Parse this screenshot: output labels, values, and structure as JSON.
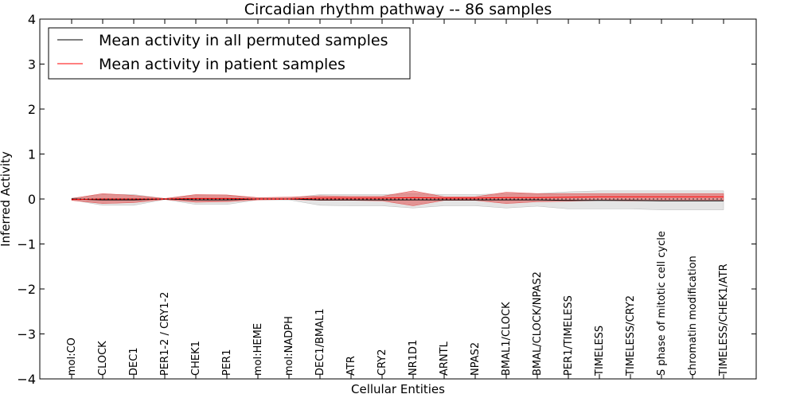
{
  "chart_data": {
    "type": "line",
    "title": "Circadian rhythm pathway -- 86 samples",
    "xlabel": "Cellular Entities",
    "ylabel": "Inferred Activity",
    "ylim": [
      -4,
      4
    ],
    "yticks": [
      -4,
      -3,
      -2,
      -1,
      0,
      1,
      2,
      3,
      4
    ],
    "ytick_labels": [
      "−4",
      "−3",
      "−2",
      "−1",
      "0",
      "1",
      "2",
      "3",
      "4"
    ],
    "grid": false,
    "legend_position": "top-left",
    "categories": [
      "mol:CO",
      "CLOCK",
      "DEC1",
      "PER1-2 / CRY1-2",
      "CHEK1",
      "PER1",
      "mol:HEME",
      "mol:NADPH",
      "DEC1/BMAL1",
      "ATR",
      "CRY2",
      "NR1D1",
      "ARNTL",
      "NPAS2",
      "BMAL1/CLOCK",
      "BMAL/CLOCK/NPAS2",
      "PER1/TIMELESS",
      "TIMELESS",
      "TIMELESS/CRY2",
      "S phase of mitotic cell cycle",
      "chromatin modification",
      "TIMELESS/CHEK1/ATR"
    ],
    "series": [
      {
        "name": "Mean activity in all permuted samples",
        "color": "#000000",
        "values": [
          0.0,
          -0.02,
          -0.02,
          0.0,
          -0.02,
          -0.02,
          0.0,
          0.0,
          -0.02,
          -0.02,
          -0.02,
          -0.02,
          -0.02,
          -0.02,
          -0.02,
          -0.02,
          -0.03,
          -0.03,
          -0.03,
          -0.04,
          -0.04,
          -0.04
        ],
        "band_lower": [
          -0.02,
          -0.14,
          -0.14,
          -0.01,
          -0.12,
          -0.12,
          -0.02,
          -0.02,
          -0.14,
          -0.15,
          -0.15,
          -0.2,
          -0.15,
          -0.15,
          -0.2,
          -0.16,
          -0.22,
          -0.22,
          -0.22,
          -0.24,
          -0.24,
          -0.24
        ],
        "band_upper": [
          0.02,
          0.1,
          0.1,
          0.01,
          0.08,
          0.08,
          0.02,
          0.02,
          0.1,
          0.1,
          0.1,
          0.12,
          0.1,
          0.1,
          0.12,
          0.12,
          0.16,
          0.18,
          0.18,
          0.18,
          0.18,
          0.18
        ],
        "band_color": "#bbbbbb"
      },
      {
        "name": "Mean activity in patient samples",
        "color": "#ff0000",
        "values": [
          -0.01,
          0.0,
          0.0,
          0.0,
          0.01,
          0.01,
          0.0,
          0.0,
          0.02,
          0.02,
          0.02,
          0.03,
          0.02,
          0.02,
          0.03,
          0.03,
          0.04,
          0.05,
          0.05,
          0.05,
          0.05,
          0.05
        ],
        "band_lower": [
          -0.03,
          -0.1,
          -0.08,
          -0.01,
          -0.07,
          -0.06,
          -0.02,
          -0.01,
          -0.03,
          -0.03,
          -0.04,
          -0.15,
          -0.03,
          -0.03,
          -0.1,
          -0.06,
          -0.05,
          -0.03,
          -0.04,
          -0.04,
          -0.04,
          -0.04
        ],
        "band_upper": [
          0.01,
          0.12,
          0.08,
          0.01,
          0.1,
          0.09,
          0.03,
          0.04,
          0.07,
          0.06,
          0.06,
          0.18,
          0.05,
          0.05,
          0.15,
          0.12,
          0.12,
          0.12,
          0.12,
          0.12,
          0.12,
          0.12
        ],
        "band_color": "#e05050"
      }
    ]
  }
}
